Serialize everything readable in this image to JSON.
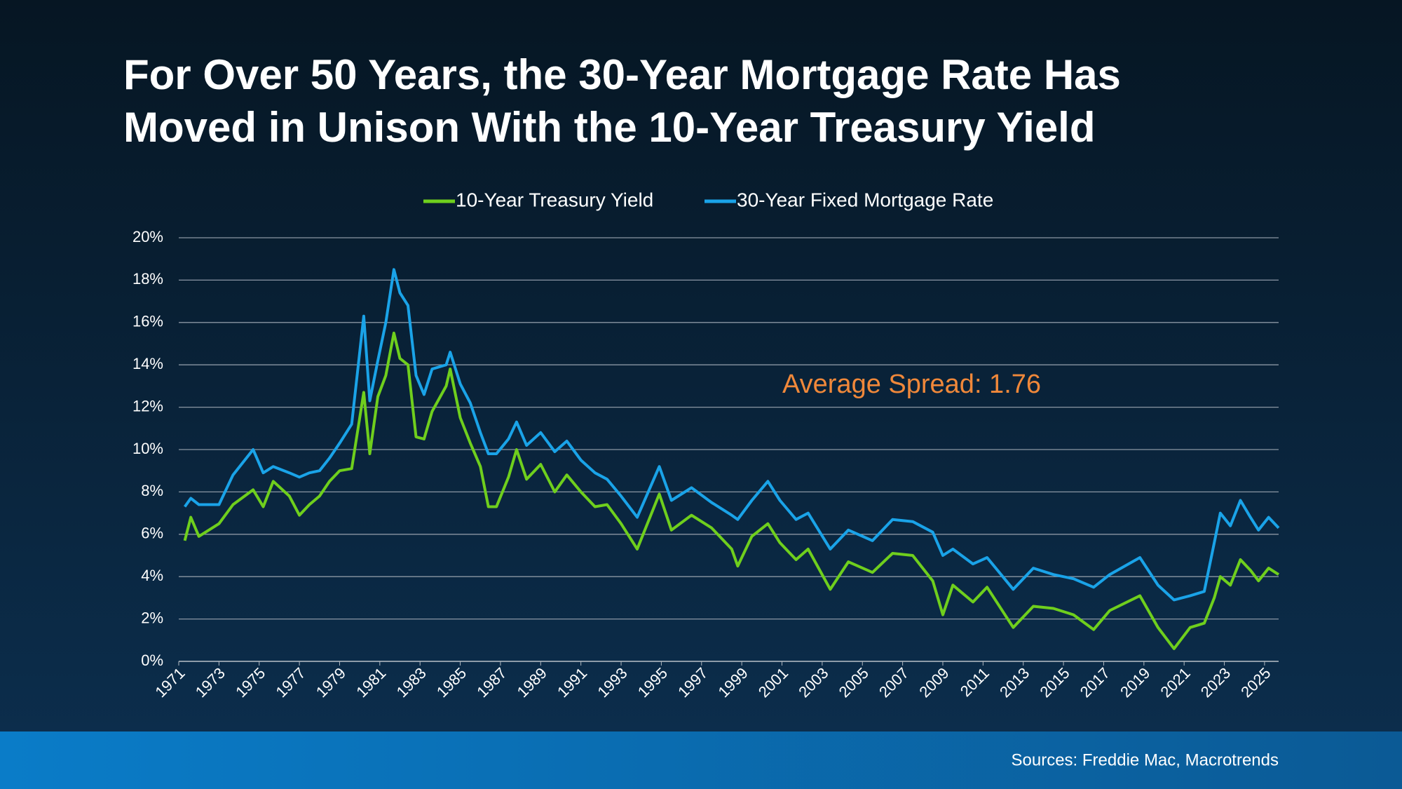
{
  "chart_data": {
    "type": "line",
    "title": "For Over 50 Years, the 30-Year Mortgage Rate Has Moved in Unison With the 10-Year Treasury Yield",
    "annotation": "Average Spread: 1.76",
    "source": "Sources: Freddie Mac, Macrotrends",
    "x": [
      1971.3,
      1971.6,
      1972,
      1973,
      1973.7,
      1974.7,
      1975.2,
      1975.7,
      1976.5,
      1977,
      1977.5,
      1978,
      1978.5,
      1979,
      1979.6,
      1980.2,
      1980.5,
      1980.9,
      1981.3,
      1981.7,
      1982,
      1982.4,
      1982.8,
      1983.2,
      1983.6,
      1984.3,
      1984.5,
      1985,
      1985.5,
      1986,
      1986.4,
      1986.8,
      1987.4,
      1987.8,
      1988.3,
      1989,
      1989.7,
      1990.3,
      1991,
      1991.7,
      1992.3,
      1993,
      1993.8,
      1994.9,
      1995.5,
      1996.5,
      1997.5,
      1998.5,
      1998.8,
      1999.5,
      2000.3,
      2000.9,
      2001.7,
      2002.3,
      2003.4,
      2004.3,
      2005.5,
      2006.5,
      2007.5,
      2008.5,
      2009,
      2009.5,
      2010.5,
      2011.2,
      2012.5,
      2013.5,
      2014.5,
      2015.5,
      2016.5,
      2017.3,
      2018.8,
      2019.7,
      2020.5,
      2021.3,
      2022,
      2022.5,
      2022.8,
      2023.3,
      2023.8,
      2024.3,
      2024.7,
      2025.2,
      2025.7
    ],
    "series": [
      {
        "name": "10-Year Treasury Yield",
        "color": "#6fcf1d",
        "values": [
          5.7,
          6.8,
          5.9,
          6.5,
          7.4,
          8.1,
          7.3,
          8.5,
          7.8,
          6.9,
          7.4,
          7.8,
          8.5,
          9.0,
          9.1,
          12.7,
          9.8,
          12.5,
          13.5,
          15.5,
          14.3,
          14.0,
          10.6,
          10.5,
          11.8,
          13.0,
          13.8,
          11.5,
          10.3,
          9.2,
          7.3,
          7.3,
          8.7,
          10.0,
          8.6,
          9.3,
          8.0,
          8.8,
          8.0,
          7.3,
          7.4,
          6.5,
          5.3,
          7.9,
          6.2,
          6.9,
          6.3,
          5.3,
          4.5,
          5.9,
          6.5,
          5.6,
          4.8,
          5.3,
          3.4,
          4.7,
          4.2,
          5.1,
          5.0,
          3.8,
          2.2,
          3.6,
          2.8,
          3.5,
          1.6,
          2.6,
          2.5,
          2.2,
          1.5,
          2.4,
          3.1,
          1.6,
          0.6,
          1.6,
          1.8,
          3.0,
          4.0,
          3.6,
          4.8,
          4.3,
          3.8,
          4.4,
          4.1
        ]
      },
      {
        "name": "30-Year Fixed Mortgage Rate",
        "color": "#1aa3e8",
        "values": [
          7.3,
          7.7,
          7.4,
          7.4,
          8.8,
          10.0,
          8.9,
          9.2,
          8.9,
          8.7,
          8.9,
          9.0,
          9.6,
          10.3,
          11.2,
          16.3,
          12.3,
          14.2,
          16.0,
          18.5,
          17.4,
          16.8,
          13.5,
          12.6,
          13.8,
          14.0,
          14.6,
          13.1,
          12.2,
          10.8,
          9.8,
          9.8,
          10.5,
          11.3,
          10.2,
          10.8,
          9.9,
          10.4,
          9.5,
          8.9,
          8.6,
          7.8,
          6.8,
          9.2,
          7.6,
          8.2,
          7.5,
          6.9,
          6.7,
          7.6,
          8.5,
          7.6,
          6.7,
          7.0,
          5.3,
          6.2,
          5.7,
          6.7,
          6.6,
          6.1,
          5.0,
          5.3,
          4.6,
          4.9,
          3.4,
          4.4,
          4.1,
          3.9,
          3.5,
          4.1,
          4.9,
          3.6,
          2.9,
          3.1,
          3.3,
          5.6,
          7.0,
          6.4,
          7.6,
          6.8,
          6.2,
          6.8,
          6.3
        ]
      }
    ],
    "xlim": [
      1971,
      2025.7
    ],
    "xticks": [
      1971,
      1973,
      1975,
      1977,
      1979,
      1981,
      1983,
      1985,
      1987,
      1989,
      1991,
      1993,
      1995,
      1997,
      1999,
      2001,
      2003,
      2005,
      2007,
      2009,
      2011,
      2013,
      2015,
      2017,
      2019,
      2021,
      2023,
      2025
    ],
    "ylim": [
      0,
      20
    ],
    "yticks": [
      {
        "value": 0,
        "label": "0%"
      },
      {
        "value": 2,
        "label": "2%"
      },
      {
        "value": 4,
        "label": "4%"
      },
      {
        "value": 6,
        "label": "6%"
      },
      {
        "value": 8,
        "label": "8%"
      },
      {
        "value": 10,
        "label": "10%"
      },
      {
        "value": 12,
        "label": "12%"
      },
      {
        "value": 14,
        "label": "14%"
      },
      {
        "value": 16,
        "label": "16%"
      },
      {
        "value": 18,
        "label": "18%"
      },
      {
        "value": 20,
        "label": "20%"
      }
    ],
    "grid": true,
    "legend": "top"
  }
}
